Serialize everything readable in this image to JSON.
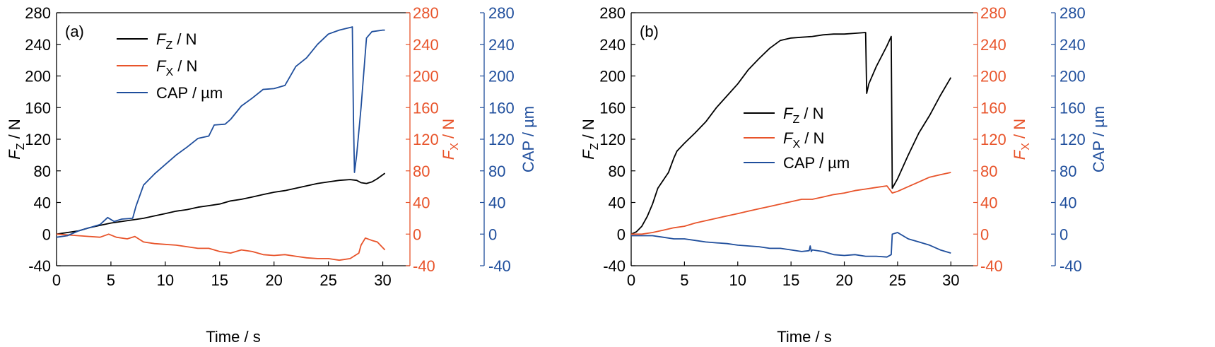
{
  "colors": {
    "fz": "#000000",
    "fx": "#e8542b",
    "cap": "#1f4e9c"
  },
  "chart_data": [
    {
      "type": "line",
      "panel_label": "(a)",
      "xlabel": "Time / s",
      "xlim": [
        0,
        32.5
      ],
      "xticks": [
        0,
        5,
        10,
        15,
        20,
        25,
        30
      ],
      "ylim": [
        -40,
        280
      ],
      "yticks": [
        -40,
        0,
        40,
        80,
        120,
        160,
        200,
        240,
        280
      ],
      "axes": {
        "left": {
          "main": "F",
          "sub": "Z",
          "unit": " / N",
          "color_key": "fz",
          "ylim": [
            -40,
            280
          ]
        },
        "right1": {
          "main": "F",
          "sub": "X",
          "unit": " / N",
          "color_key": "fx",
          "ylim": [
            -40,
            280
          ]
        },
        "right2": {
          "label": "CAP / µm",
          "color_key": "cap",
          "ylim": [
            -40,
            280
          ]
        }
      },
      "legend": {
        "position": "top-center",
        "entries": [
          {
            "main": "F",
            "sub": "Z",
            "unit": " / N"
          },
          {
            "main": "F",
            "sub": "X",
            "unit": " / N"
          },
          {
            "main": "CAP / µm",
            "sub": "",
            "unit": ""
          }
        ]
      },
      "series": [
        {
          "name": "FZ / N",
          "color_key": "fz",
          "points": [
            [
              0,
              0
            ],
            [
              1,
              2
            ],
            [
              2,
              4
            ],
            [
              3,
              8
            ],
            [
              4,
              11
            ],
            [
              5,
              14
            ],
            [
              6,
              16
            ],
            [
              7,
              18
            ],
            [
              8,
              20
            ],
            [
              9,
              23
            ],
            [
              10,
              26
            ],
            [
              11,
              29
            ],
            [
              12,
              31
            ],
            [
              13,
              34
            ],
            [
              14,
              36
            ],
            [
              15,
              38
            ],
            [
              16,
              42
            ],
            [
              17,
              44
            ],
            [
              18,
              47
            ],
            [
              19,
              50
            ],
            [
              20,
              53
            ],
            [
              21,
              55
            ],
            [
              22,
              58
            ],
            [
              23,
              61
            ],
            [
              24,
              64
            ],
            [
              25,
              66
            ],
            [
              26,
              68
            ],
            [
              27,
              69
            ],
            [
              27.6,
              68
            ],
            [
              28,
              65
            ],
            [
              28.5,
              64
            ],
            [
              29,
              66
            ],
            [
              29.5,
              70
            ],
            [
              30.2,
              77
            ]
          ]
        },
        {
          "name": "FX / N",
          "color_key": "fx",
          "points": [
            [
              0,
              0
            ],
            [
              1,
              -1
            ],
            [
              2,
              -2
            ],
            [
              3,
              -3
            ],
            [
              4,
              -4
            ],
            [
              4.8,
              0
            ],
            [
              5.5,
              -4
            ],
            [
              6.5,
              -6
            ],
            [
              7.2,
              -3
            ],
            [
              8,
              -10
            ],
            [
              9,
              -12
            ],
            [
              10,
              -13
            ],
            [
              11,
              -14
            ],
            [
              12,
              -16
            ],
            [
              13,
              -18
            ],
            [
              14,
              -18
            ],
            [
              15,
              -22
            ],
            [
              16,
              -24
            ],
            [
              17,
              -20
            ],
            [
              18,
              -22
            ],
            [
              19,
              -26
            ],
            [
              20,
              -27
            ],
            [
              21,
              -26
            ],
            [
              22,
              -28
            ],
            [
              23,
              -30
            ],
            [
              24,
              -31
            ],
            [
              25,
              -31
            ],
            [
              26,
              -33
            ],
            [
              27,
              -31
            ],
            [
              27.8,
              -24
            ],
            [
              28,
              -14
            ],
            [
              28.4,
              -5
            ],
            [
              29,
              -8
            ],
            [
              29.5,
              -10
            ],
            [
              30.2,
              -20
            ]
          ]
        },
        {
          "name": "CAP / µm",
          "color_key": "cap",
          "points": [
            [
              0,
              -4
            ],
            [
              1,
              -2
            ],
            [
              2,
              4
            ],
            [
              3,
              8
            ],
            [
              4,
              12
            ],
            [
              4.7,
              21
            ],
            [
              5.3,
              16
            ],
            [
              6,
              19
            ],
            [
              7,
              20
            ],
            [
              7.3,
              35
            ],
            [
              8,
              62
            ],
            [
              9,
              76
            ],
            [
              10,
              88
            ],
            [
              11,
              100
            ],
            [
              12,
              110
            ],
            [
              13,
              121
            ],
            [
              14,
              124
            ],
            [
              14.5,
              138
            ],
            [
              15.5,
              139
            ],
            [
              16,
              145
            ],
            [
              17,
              162
            ],
            [
              18,
              172
            ],
            [
              19,
              183
            ],
            [
              20,
              184
            ],
            [
              21,
              188
            ],
            [
              22,
              212
            ],
            [
              23,
              223
            ],
            [
              24,
              240
            ],
            [
              25,
              253
            ],
            [
              26,
              258
            ],
            [
              27.2,
              262
            ],
            [
              27.3,
              150
            ],
            [
              27.4,
              78
            ],
            [
              27.6,
              100
            ],
            [
              28,
              160
            ],
            [
              28.5,
              248
            ],
            [
              29,
              256
            ],
            [
              30,
              258
            ],
            [
              30.2,
              258
            ]
          ]
        }
      ]
    },
    {
      "type": "line",
      "panel_label": "(b)",
      "xlabel": "Time / s",
      "xlim": [
        0,
        32.5
      ],
      "xticks": [
        0,
        5,
        10,
        15,
        20,
        25,
        30
      ],
      "ylim": [
        -40,
        280
      ],
      "yticks": [
        -40,
        0,
        40,
        80,
        120,
        160,
        200,
        240,
        280
      ],
      "axes": {
        "left": {
          "main": "F",
          "sub": "Z",
          "unit": " / N",
          "color_key": "fz",
          "ylim": [
            -40,
            280
          ]
        },
        "right1": {
          "main": "F",
          "sub": "X",
          "unit": " / N",
          "color_key": "fx",
          "ylim": [
            -40,
            280
          ]
        },
        "right2": {
          "label": "CAP / µm",
          "color_key": "cap",
          "ylim": [
            -40,
            280
          ]
        }
      },
      "legend": {
        "position": "center",
        "entries": [
          {
            "main": "F",
            "sub": "Z",
            "unit": " / N"
          },
          {
            "main": "F",
            "sub": "X",
            "unit": " / N"
          },
          {
            "main": "CAP / µm",
            "sub": "",
            "unit": ""
          }
        ]
      },
      "series": [
        {
          "name": "FZ / N",
          "color_key": "fz",
          "points": [
            [
              0,
              0
            ],
            [
              0.5,
              3
            ],
            [
              1,
              10
            ],
            [
              1.5,
              22
            ],
            [
              2,
              38
            ],
            [
              2.5,
              58
            ],
            [
              3,
              68
            ],
            [
              3.5,
              78
            ],
            [
              4,
              96
            ],
            [
              4.3,
              105
            ],
            [
              5,
              115
            ],
            [
              6,
              128
            ],
            [
              7,
              142
            ],
            [
              8,
              160
            ],
            [
              9,
              175
            ],
            [
              10,
              190
            ],
            [
              11,
              208
            ],
            [
              12,
              222
            ],
            [
              13,
              235
            ],
            [
              14,
              245
            ],
            [
              15,
              248
            ],
            [
              16,
              249
            ],
            [
              17,
              250
            ],
            [
              18,
              252
            ],
            [
              19,
              253
            ],
            [
              20,
              253
            ],
            [
              21,
              254
            ],
            [
              22,
              255
            ],
            [
              22.1,
              178
            ],
            [
              22.3,
              190
            ],
            [
              23,
              212
            ],
            [
              24,
              238
            ],
            [
              24.4,
              250
            ],
            [
              24.5,
              58
            ],
            [
              25,
              70
            ],
            [
              26,
              100
            ],
            [
              27,
              128
            ],
            [
              28,
              150
            ],
            [
              29,
              175
            ],
            [
              30,
              198
            ]
          ]
        },
        {
          "name": "FX / N",
          "color_key": "fx",
          "points": [
            [
              0,
              0
            ],
            [
              1,
              0
            ],
            [
              2,
              2
            ],
            [
              3,
              5
            ],
            [
              4,
              8
            ],
            [
              5,
              10
            ],
            [
              6,
              14
            ],
            [
              7,
              17
            ],
            [
              8,
              20
            ],
            [
              9,
              23
            ],
            [
              10,
              26
            ],
            [
              11,
              29
            ],
            [
              12,
              32
            ],
            [
              13,
              35
            ],
            [
              14,
              38
            ],
            [
              15,
              41
            ],
            [
              16,
              44
            ],
            [
              17,
              44
            ],
            [
              18,
              47
            ],
            [
              19,
              50
            ],
            [
              20,
              52
            ],
            [
              21,
              55
            ],
            [
              22,
              57
            ],
            [
              23,
              59
            ],
            [
              24,
              61
            ],
            [
              24.5,
              52
            ],
            [
              25,
              54
            ],
            [
              26,
              60
            ],
            [
              27,
              66
            ],
            [
              28,
              72
            ],
            [
              29,
              75
            ],
            [
              30,
              78
            ]
          ]
        },
        {
          "name": "CAP / µm",
          "color_key": "cap",
          "points": [
            [
              0,
              -2
            ],
            [
              1,
              -2
            ],
            [
              2,
              -2
            ],
            [
              3,
              -4
            ],
            [
              4,
              -6
            ],
            [
              5,
              -6
            ],
            [
              6,
              -8
            ],
            [
              7,
              -10
            ],
            [
              8,
              -11
            ],
            [
              9,
              -12
            ],
            [
              10,
              -14
            ],
            [
              11,
              -15
            ],
            [
              12,
              -16
            ],
            [
              13,
              -18
            ],
            [
              14,
              -18
            ],
            [
              15,
              -20
            ],
            [
              16,
              -22
            ],
            [
              16.7,
              -21
            ],
            [
              16.8,
              -15
            ],
            [
              16.9,
              -22
            ],
            [
              17,
              -20
            ],
            [
              18,
              -22
            ],
            [
              19,
              -26
            ],
            [
              20,
              -27
            ],
            [
              21,
              -26
            ],
            [
              22,
              -28
            ],
            [
              23,
              -28
            ],
            [
              24,
              -29
            ],
            [
              24.4,
              -26
            ],
            [
              24.5,
              0
            ],
            [
              25,
              2
            ],
            [
              26,
              -6
            ],
            [
              27,
              -10
            ],
            [
              28,
              -14
            ],
            [
              29,
              -20
            ],
            [
              30,
              -24
            ]
          ]
        }
      ]
    }
  ]
}
